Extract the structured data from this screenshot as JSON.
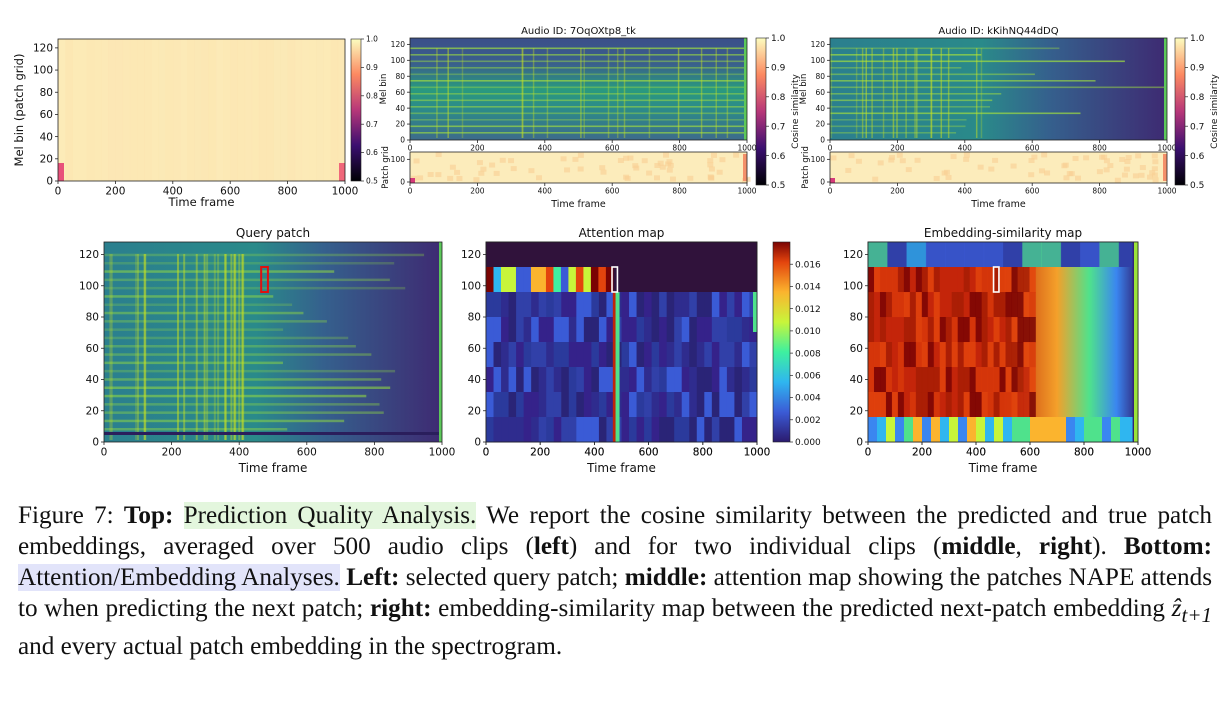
{
  "colors": {
    "highlight_top": "#e3f6dd",
    "highlight_bottom": "#e2e4fa",
    "query_box": "#e01010",
    "map_box": "#ffffff"
  },
  "chart_data": [
    {
      "type": "heatmap",
      "title": "",
      "xlabel": "Time frame",
      "ylabel": "Mel bin (patch grid)",
      "xlim": [
        0,
        1000
      ],
      "ylim": [
        0,
        128
      ],
      "x_ticks": [
        "0",
        "200",
        "400",
        "600",
        "800",
        "1000"
      ],
      "y_ticks": [
        "0",
        "20",
        "40",
        "60",
        "80",
        "100",
        "120"
      ],
      "colorbar": {
        "min": 0.5,
        "max": 1.0,
        "ticks": [
          "0.5",
          "0.6",
          "0.7",
          "0.8",
          "0.9",
          "1.0"
        ],
        "label": ""
      },
      "colormap": "magma"
    },
    {
      "type": "heatmap",
      "title": "Audio ID: 7OqOXtp8_tk",
      "xlabel": "Time frame",
      "ylabel": "Mel bin",
      "sub_ylabel": "Patch grid",
      "xlim": [
        0,
        1000
      ],
      "ylim": [
        0,
        128
      ],
      "x_ticks": [
        "0",
        "200",
        "400",
        "600",
        "800",
        "1000"
      ],
      "y_ticks": [
        "0",
        "20",
        "40",
        "60",
        "80",
        "100",
        "120"
      ],
      "sub_y_ticks": [
        "0",
        "100"
      ],
      "colorbar": {
        "min": 0.5,
        "max": 1.0,
        "ticks": [
          "0.5",
          "0.6",
          "0.7",
          "0.8",
          "0.9",
          "1.0"
        ],
        "label": "Cosine similarity"
      },
      "colormap": "magma"
    },
    {
      "type": "heatmap",
      "title": "Audio ID: kKihNQ44dDQ",
      "xlabel": "Time frame",
      "ylabel": "Mel bin",
      "sub_ylabel": "Patch grid",
      "xlim": [
        0,
        1000
      ],
      "ylim": [
        0,
        128
      ],
      "x_ticks": [
        "0",
        "200",
        "400",
        "600",
        "800",
        "1000"
      ],
      "y_ticks": [
        "0",
        "20",
        "40",
        "60",
        "80",
        "100",
        "120"
      ],
      "sub_y_ticks": [
        "0",
        "100"
      ],
      "colorbar": {
        "min": 0.5,
        "max": 1.0,
        "ticks": [
          "0.5",
          "0.6",
          "0.7",
          "0.8",
          "0.9",
          "1.0"
        ],
        "label": "Cosine similarity"
      },
      "colormap": "magma"
    },
    {
      "type": "heatmap",
      "title": "Query patch",
      "xlabel": "Time frame",
      "ylabel": "",
      "xlim": [
        0,
        1000
      ],
      "ylim": [
        0,
        128
      ],
      "x_ticks": [
        "0",
        "200",
        "400",
        "600",
        "800",
        "1000"
      ],
      "y_ticks": [
        "0",
        "20",
        "40",
        "60",
        "80",
        "100",
        "120"
      ],
      "query_patch": {
        "x": [
          465,
          485
        ],
        "y": [
          96,
          112
        ]
      },
      "colormap": "viridis"
    },
    {
      "type": "heatmap",
      "title": "Attention map",
      "xlabel": "Time frame",
      "ylabel": "",
      "xlim": [
        0,
        1000
      ],
      "ylim": [
        0,
        128
      ],
      "x_ticks": [
        "0",
        "200",
        "400",
        "600",
        "800",
        "1000"
      ],
      "y_ticks": [
        "0",
        "20",
        "40",
        "60",
        "80",
        "100",
        "120"
      ],
      "colorbar": {
        "min": 0.0,
        "max": 0.018,
        "ticks": [
          "0.000",
          "0.002",
          "0.004",
          "0.006",
          "0.008",
          "0.010",
          "0.012",
          "0.014",
          "0.016"
        ],
        "label": ""
      },
      "colormap": "turbo"
    },
    {
      "type": "heatmap",
      "title": "Embedding-similarity map",
      "xlabel": "Time frame",
      "ylabel": "",
      "xlim": [
        0,
        1000
      ],
      "ylim": [
        0,
        128
      ],
      "x_ticks": [
        "0",
        "200",
        "400",
        "600",
        "800",
        "1000"
      ],
      "y_ticks": [
        "0",
        "20",
        "40",
        "60",
        "80",
        "100",
        "120"
      ],
      "colormap": "turbo"
    }
  ],
  "caption": {
    "figure_label": "Figure 7:",
    "top_label": "Top:",
    "top_highlight": "Prediction Quality Analysis.",
    "top_text_1": " We report the cosine similarity between the predicted and true patch embeddings, averaged over ",
    "count": "500",
    "top_text_2": " audio clips (",
    "left_word": "left",
    "top_text_3": ") and for two individual clips (",
    "middle_word": "middle",
    "comma": ", ",
    "right_word": "right",
    "top_text_4": "). ",
    "bottom_label": "Bottom:",
    "bottom_highlight": "Attention/Embedding Analyses.",
    "left_label": "Left:",
    "left_text": " selected query patch; ",
    "middle_label": "middle:",
    "middle_text": " attention map showing the patches NAPE attends to when predicting the next patch; ",
    "right_label": "right:",
    "right_text_1": " embedding-similarity map between the predicted next-patch embedding ",
    "math": "ẑ",
    "math_sub": "t+1",
    "right_text_2": " and every actual patch embedding in the spectrogram."
  }
}
